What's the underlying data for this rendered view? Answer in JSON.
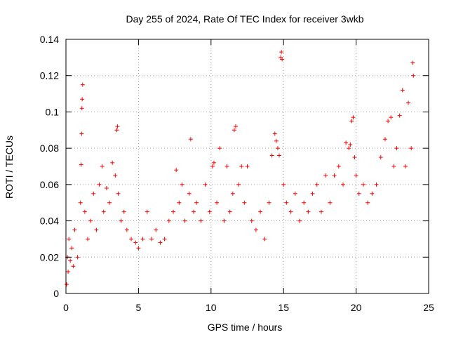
{
  "chart_data": {
    "type": "scatter",
    "title": "Day 255 of 2024, Rate Of TEC Index for receiver 3wkb",
    "xlabel": "GPS time / hours",
    "ylabel": "ROTI / TECUs",
    "xlim": [
      0,
      25
    ],
    "ylim": [
      0,
      0.14
    ],
    "xticks": [
      0,
      5,
      10,
      15,
      20,
      25
    ],
    "xtick_labels": [
      "0",
      "5",
      "10",
      "15",
      "20",
      "25"
    ],
    "yticks": [
      0,
      0.02,
      0.04,
      0.06,
      0.08,
      0.1,
      0.12,
      0.14
    ],
    "ytick_labels": [
      "0",
      "0.02",
      "0.04",
      "0.06",
      "0.08",
      "0.1",
      "0.12",
      "0.14"
    ],
    "grid": true,
    "marker": "+",
    "color": "#ff0000",
    "series": [
      {
        "name": "ROTI",
        "x": [
          0.05,
          0.1,
          0.15,
          0.2,
          0.3,
          0.4,
          0.5,
          0.6,
          0.8,
          1.0,
          1.05,
          1.08,
          1.1,
          1.12,
          1.15,
          1.3,
          1.5,
          1.7,
          1.9,
          2.1,
          2.3,
          2.5,
          2.6,
          2.8,
          3.0,
          3.2,
          3.4,
          3.5,
          3.55,
          3.6,
          3.8,
          4.0,
          4.2,
          4.5,
          4.8,
          5.0,
          5.3,
          5.6,
          5.9,
          6.2,
          6.5,
          6.8,
          7.1,
          7.4,
          7.6,
          7.8,
          8.0,
          8.2,
          8.5,
          8.6,
          8.8,
          9.0,
          9.3,
          9.6,
          9.9,
          10.1,
          10.2,
          10.4,
          10.6,
          10.9,
          11.1,
          11.3,
          11.5,
          11.6,
          11.7,
          11.9,
          12.1,
          12.3,
          12.5,
          12.8,
          13.1,
          13.4,
          13.7,
          14.0,
          14.2,
          14.4,
          14.5,
          14.6,
          14.7,
          14.8,
          14.85,
          14.9,
          15.0,
          15.2,
          15.5,
          15.8,
          16.1,
          16.4,
          16.7,
          17.0,
          17.3,
          17.6,
          17.9,
          18.2,
          18.5,
          18.8,
          19.1,
          19.3,
          19.5,
          19.6,
          19.7,
          19.8,
          19.9,
          20.0,
          20.2,
          20.5,
          20.8,
          21.1,
          21.4,
          21.7,
          22.0,
          22.2,
          22.4,
          22.6,
          22.8,
          23.0,
          23.2,
          23.4,
          23.6,
          23.8,
          23.9,
          23.95
        ],
        "y": [
          0.005,
          0.02,
          0.012,
          0.03,
          0.018,
          0.025,
          0.015,
          0.035,
          0.02,
          0.05,
          0.071,
          0.088,
          0.102,
          0.107,
          0.115,
          0.045,
          0.03,
          0.04,
          0.055,
          0.035,
          0.06,
          0.07,
          0.045,
          0.058,
          0.05,
          0.072,
          0.065,
          0.09,
          0.092,
          0.055,
          0.04,
          0.045,
          0.035,
          0.03,
          0.028,
          0.025,
          0.03,
          0.045,
          0.03,
          0.035,
          0.028,
          0.03,
          0.04,
          0.045,
          0.068,
          0.05,
          0.06,
          0.04,
          0.055,
          0.085,
          0.045,
          0.05,
          0.04,
          0.06,
          0.045,
          0.07,
          0.072,
          0.05,
          0.08,
          0.04,
          0.07,
          0.045,
          0.055,
          0.09,
          0.092,
          0.06,
          0.07,
          0.05,
          0.07,
          0.04,
          0.035,
          0.045,
          0.03,
          0.05,
          0.076,
          0.088,
          0.084,
          0.08,
          0.076,
          0.13,
          0.133,
          0.129,
          0.06,
          0.05,
          0.045,
          0.055,
          0.04,
          0.05,
          0.045,
          0.055,
          0.06,
          0.045,
          0.065,
          0.05,
          0.065,
          0.07,
          0.06,
          0.083,
          0.08,
          0.082,
          0.095,
          0.097,
          0.075,
          0.065,
          0.055,
          0.06,
          0.05,
          0.055,
          0.06,
          0.075,
          0.085,
          0.095,
          0.097,
          0.07,
          0.08,
          0.098,
          0.112,
          0.07,
          0.105,
          0.08,
          0.127,
          0.12
        ]
      }
    ]
  }
}
